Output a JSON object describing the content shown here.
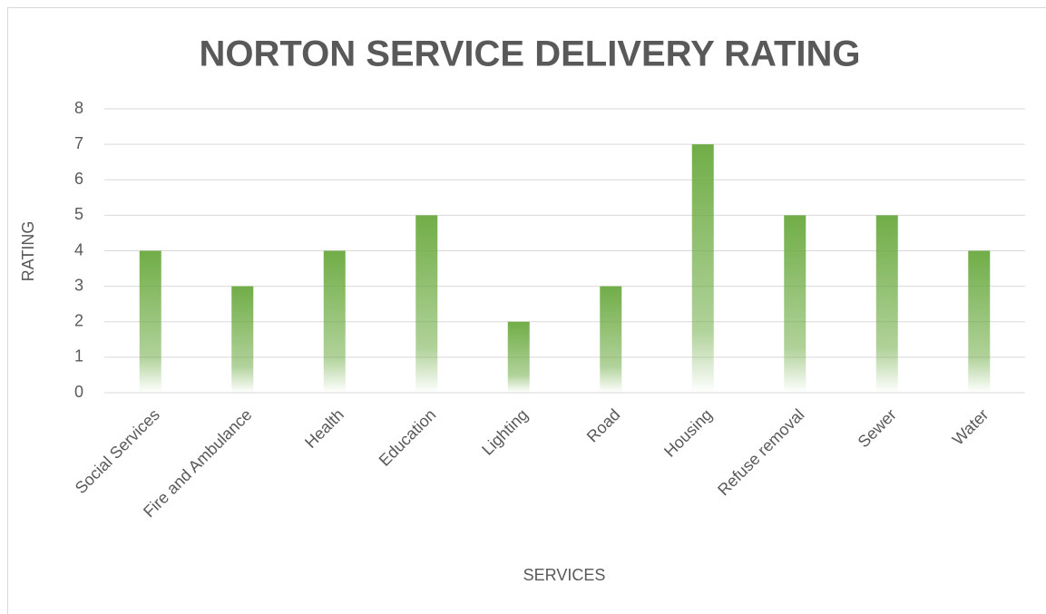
{
  "chart_data": {
    "type": "bar",
    "title": "NORTON SERVICE DELIVERY RATING",
    "x_label": "SERVICES",
    "y_label": "RATING",
    "categories": [
      "Social Services",
      "Fire and Ambulance",
      "Health",
      "Education",
      "Lighting",
      "Road",
      "Housing",
      "Refuse removal",
      "Sewer",
      "Water"
    ],
    "values": [
      4,
      3,
      4,
      5,
      2,
      3,
      7,
      5,
      5,
      4
    ],
    "color": "#70ad47",
    "ylim": [
      0,
      8
    ],
    "yticks": [
      0,
      1,
      2,
      3,
      4,
      5,
      6,
      7,
      8
    ],
    "grid": true
  }
}
